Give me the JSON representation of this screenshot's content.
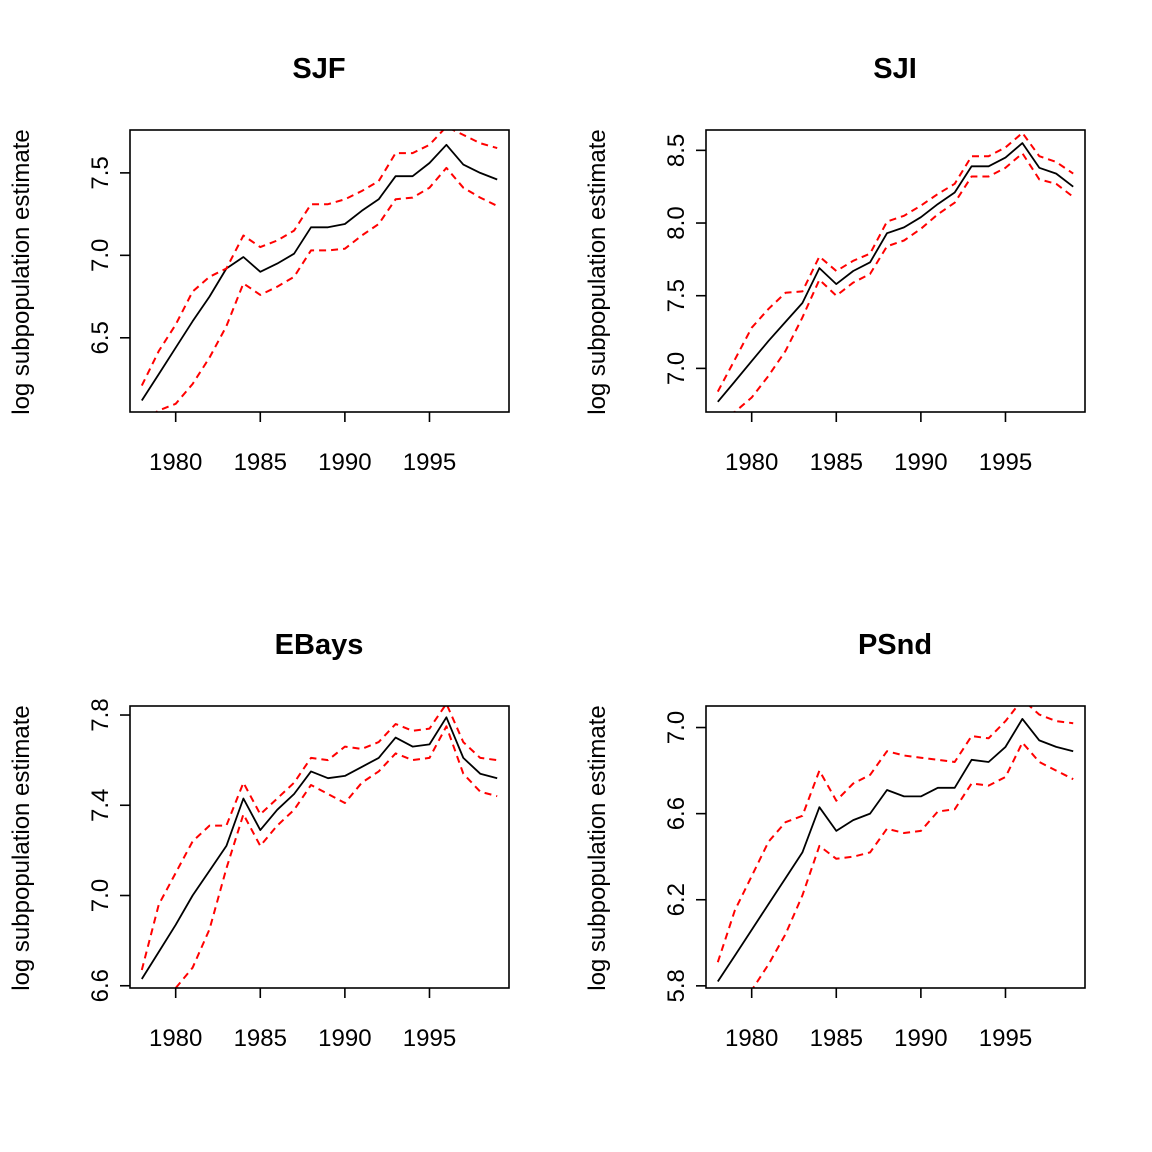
{
  "chart_data": [
    {
      "type": "line",
      "title": "SJF",
      "xlabel": "",
      "ylabel": "log subpopulation estimate",
      "xlim": [
        1977.3,
        1999.7
      ],
      "ylim": [
        6.05,
        7.76
      ],
      "x_ticks": [
        1980,
        1985,
        1990,
        1995
      ],
      "y_ticks": [
        6.5,
        7.0,
        7.5
      ],
      "x_tick_labels": [
        "1980",
        "1985",
        "1990",
        "1995"
      ],
      "y_tick_labels": [
        "6.5",
        "7.0",
        "7.5"
      ],
      "grid": false,
      "x": [
        1978,
        1979,
        1980,
        1981,
        1982,
        1983,
        1984,
        1985,
        1986,
        1987,
        1988,
        1989,
        1990,
        1991,
        1992,
        1993,
        1994,
        1995,
        1996,
        1997,
        1998,
        1999
      ],
      "series": [
        {
          "style": "solid",
          "color": "#000000",
          "values": [
            6.12,
            6.28,
            6.44,
            6.6,
            6.75,
            6.92,
            6.99,
            6.9,
            6.95,
            7.01,
            7.17,
            7.17,
            7.19,
            7.27,
            7.34,
            7.48,
            7.48,
            7.56,
            7.67,
            7.55,
            7.5,
            7.46
          ]
        },
        {
          "style": "dashed",
          "color": "#ff0000",
          "values": [
            6.21,
            6.42,
            6.58,
            6.78,
            6.87,
            6.92,
            7.12,
            7.05,
            7.09,
            7.15,
            7.31,
            7.31,
            7.34,
            7.39,
            7.45,
            7.62,
            7.62,
            7.67,
            7.78,
            7.73,
            7.68,
            7.65
          ]
        },
        {
          "style": "dashed",
          "color": "#ff0000",
          "values": [
            5.99,
            6.06,
            6.1,
            6.22,
            6.38,
            6.57,
            6.83,
            6.76,
            6.81,
            6.87,
            7.03,
            7.03,
            7.04,
            7.12,
            7.19,
            7.34,
            7.35,
            7.41,
            7.53,
            7.41,
            7.35,
            7.3
          ]
        }
      ]
    },
    {
      "type": "line",
      "title": "SJI",
      "xlabel": "",
      "ylabel": "log subpopulation estimate",
      "xlim": [
        1977.3,
        1999.7
      ],
      "ylim": [
        6.7,
        8.64
      ],
      "x_ticks": [
        1980,
        1985,
        1990,
        1995
      ],
      "y_ticks": [
        7.0,
        7.5,
        8.0,
        8.5
      ],
      "x_tick_labels": [
        "1980",
        "1985",
        "1990",
        "1995"
      ],
      "y_tick_labels": [
        "7.0",
        "7.5",
        "8.0",
        "8.5"
      ],
      "grid": false,
      "x": [
        1978,
        1979,
        1980,
        1981,
        1982,
        1983,
        1984,
        1985,
        1986,
        1987,
        1988,
        1989,
        1990,
        1991,
        1992,
        1993,
        1994,
        1995,
        1996,
        1997,
        1998,
        1999
      ],
      "series": [
        {
          "style": "solid",
          "color": "#000000",
          "values": [
            6.77,
            6.91,
            7.05,
            7.19,
            7.32,
            7.45,
            7.69,
            7.58,
            7.67,
            7.73,
            7.93,
            7.97,
            8.04,
            8.13,
            8.21,
            8.39,
            8.39,
            8.45,
            8.55,
            8.38,
            8.34,
            8.25
          ]
        },
        {
          "style": "dashed",
          "color": "#ff0000",
          "values": [
            6.84,
            7.06,
            7.28,
            7.41,
            7.52,
            7.53,
            7.77,
            7.67,
            7.74,
            7.79,
            8.01,
            8.05,
            8.12,
            8.2,
            8.27,
            8.46,
            8.46,
            8.52,
            8.62,
            8.46,
            8.42,
            8.34
          ]
        },
        {
          "style": "dashed",
          "color": "#ff0000",
          "values": [
            6.66,
            6.7,
            6.8,
            6.95,
            7.12,
            7.35,
            7.61,
            7.5,
            7.59,
            7.65,
            7.84,
            7.88,
            7.96,
            8.06,
            8.14,
            8.32,
            8.32,
            8.38,
            8.48,
            8.3,
            8.27,
            8.18
          ]
        }
      ]
    },
    {
      "type": "line",
      "title": "EBays",
      "xlabel": "",
      "ylabel": "log subpopulation estimate",
      "xlim": [
        1977.3,
        1999.7
      ],
      "ylim": [
        6.59,
        7.84
      ],
      "x_ticks": [
        1980,
        1985,
        1990,
        1995
      ],
      "y_ticks": [
        6.6,
        7.0,
        7.4,
        7.8
      ],
      "x_tick_labels": [
        "1980",
        "1985",
        "1990",
        "1995"
      ],
      "y_tick_labels": [
        "6.6",
        "7.0",
        "7.4",
        "7.8"
      ],
      "grid": false,
      "x": [
        1978,
        1979,
        1980,
        1981,
        1982,
        1983,
        1984,
        1985,
        1986,
        1987,
        1988,
        1989,
        1990,
        1991,
        1992,
        1993,
        1994,
        1995,
        1996,
        1997,
        1998,
        1999
      ],
      "series": [
        {
          "style": "solid",
          "color": "#000000",
          "values": [
            6.63,
            6.75,
            6.87,
            7.0,
            7.11,
            7.22,
            7.43,
            7.29,
            7.38,
            7.45,
            7.55,
            7.52,
            7.53,
            7.57,
            7.61,
            7.7,
            7.66,
            7.67,
            7.79,
            7.61,
            7.54,
            7.52
          ]
        },
        {
          "style": "dashed",
          "color": "#ff0000",
          "values": [
            6.67,
            6.96,
            7.1,
            7.24,
            7.31,
            7.31,
            7.5,
            7.36,
            7.43,
            7.5,
            7.61,
            7.6,
            7.66,
            7.65,
            7.68,
            7.76,
            7.73,
            7.74,
            7.85,
            7.68,
            7.61,
            7.6
          ]
        },
        {
          "style": "dashed",
          "color": "#ff0000",
          "values": [
            6.54,
            6.56,
            6.59,
            6.68,
            6.85,
            7.12,
            7.36,
            7.22,
            7.31,
            7.38,
            7.49,
            7.45,
            7.41,
            7.5,
            7.55,
            7.63,
            7.6,
            7.61,
            7.75,
            7.54,
            7.46,
            7.44
          ]
        }
      ]
    },
    {
      "type": "line",
      "title": "PSnd",
      "xlabel": "",
      "ylabel": "log subpopulation estimate",
      "xlim": [
        1977.3,
        1999.7
      ],
      "ylim": [
        5.79,
        7.1
      ],
      "x_ticks": [
        1980,
        1985,
        1990,
        1995
      ],
      "y_ticks": [
        5.8,
        6.2,
        6.6,
        7.0
      ],
      "x_tick_labels": [
        "1980",
        "1985",
        "1990",
        "1995"
      ],
      "y_tick_labels": [
        "5.8",
        "6.2",
        "6.6",
        "7.0"
      ],
      "grid": false,
      "x": [
        1978,
        1979,
        1980,
        1981,
        1982,
        1983,
        1984,
        1985,
        1986,
        1987,
        1988,
        1989,
        1990,
        1991,
        1992,
        1993,
        1994,
        1995,
        1996,
        1997,
        1998,
        1999
      ],
      "series": [
        {
          "style": "solid",
          "color": "#000000",
          "values": [
            5.82,
            5.94,
            6.06,
            6.18,
            6.3,
            6.42,
            6.63,
            6.52,
            6.57,
            6.6,
            6.71,
            6.68,
            6.68,
            6.72,
            6.72,
            6.85,
            6.84,
            6.91,
            7.04,
            6.94,
            6.91,
            6.89
          ]
        },
        {
          "style": "dashed",
          "color": "#ff0000",
          "values": [
            5.91,
            6.15,
            6.31,
            6.47,
            6.56,
            6.59,
            6.8,
            6.66,
            6.74,
            6.78,
            6.89,
            6.87,
            6.86,
            6.85,
            6.84,
            6.96,
            6.95,
            7.03,
            7.13,
            7.06,
            7.03,
            7.02
          ]
        },
        {
          "style": "dashed",
          "color": "#ff0000",
          "values": [
            5.71,
            5.72,
            5.78,
            5.9,
            6.04,
            6.22,
            6.45,
            6.39,
            6.4,
            6.42,
            6.53,
            6.51,
            6.52,
            6.61,
            6.62,
            6.74,
            6.73,
            6.77,
            6.93,
            6.84,
            6.8,
            6.76
          ]
        }
      ]
    }
  ]
}
